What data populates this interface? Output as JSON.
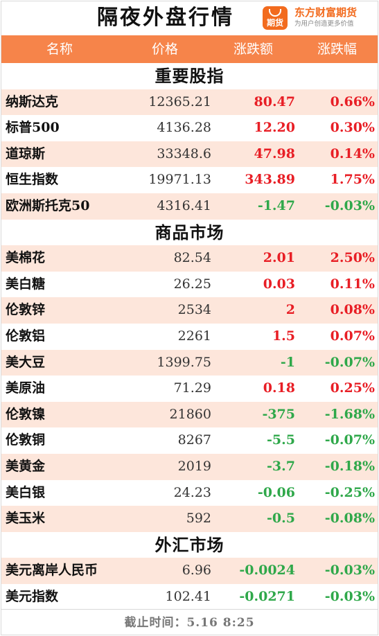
{
  "header": {
    "title": "隔夜外盘行情",
    "brand_name": "东方财富期货",
    "brand_slogan": "为用户创造更多价值",
    "brand_icon_text": "期货",
    "accent": "#f26b1e"
  },
  "columns": {
    "name": "名称",
    "price": "价格",
    "change": "涨跌额",
    "pct": "涨跌幅"
  },
  "colors": {
    "up": "#e81e25",
    "down": "#2fa84a",
    "header_bg": "#f6844a",
    "alt_row": "#fde6db"
  },
  "sections": [
    {
      "title": "重要股指",
      "rows": [
        {
          "name": "纳斯达克",
          "price": "12365.21",
          "change": "80.47",
          "pct": "0.66%",
          "dir": "up"
        },
        {
          "name": "标普500",
          "price": "4136.28",
          "change": "12.20",
          "pct": "0.30%",
          "dir": "up"
        },
        {
          "name": "道琼斯",
          "price": "33348.6",
          "change": "47.98",
          "pct": "0.14%",
          "dir": "up"
        },
        {
          "name": "恒生指数",
          "price": "19971.13",
          "change": "343.89",
          "pct": "1.75%",
          "dir": "up"
        },
        {
          "name": "欧洲斯托克50",
          "price": "4316.41",
          "change": "-1.47",
          "pct": "-0.03%",
          "dir": "down"
        }
      ]
    },
    {
      "title": "商品市场",
      "rows": [
        {
          "name": "美棉花",
          "price": "82.54",
          "change": "2.01",
          "pct": "2.50%",
          "dir": "up"
        },
        {
          "name": "美白糖",
          "price": "26.25",
          "change": "0.03",
          "pct": "0.11%",
          "dir": "up"
        },
        {
          "name": "伦敦锌",
          "price": "2534",
          "change": "2",
          "pct": "0.08%",
          "dir": "up"
        },
        {
          "name": "伦敦铝",
          "price": "2261",
          "change": "1.5",
          "pct": "0.07%",
          "dir": "up"
        },
        {
          "name": "美大豆",
          "price": "1399.75",
          "change": "-1",
          "pct": "-0.07%",
          "dir": "down"
        },
        {
          "name": "美原油",
          "price": "71.29",
          "change": "0.18",
          "pct": "0.25%",
          "dir": "up"
        },
        {
          "name": "伦敦镍",
          "price": "21860",
          "change": "-375",
          "pct": "-1.68%",
          "dir": "down"
        },
        {
          "name": "伦敦铜",
          "price": "8267",
          "change": "-5.5",
          "pct": "-0.07%",
          "dir": "down"
        },
        {
          "name": "美黄金",
          "price": "2019",
          "change": "-3.7",
          "pct": "-0.18%",
          "dir": "down"
        },
        {
          "name": "美白银",
          "price": "24.23",
          "change": "-0.06",
          "pct": "-0.25%",
          "dir": "down"
        },
        {
          "name": "美玉米",
          "price": "592",
          "change": "-0.5",
          "pct": "-0.08%",
          "dir": "down"
        }
      ]
    },
    {
      "title": "外汇市场",
      "rows": [
        {
          "name": "美元离岸人民币",
          "price": "6.96",
          "change": "-0.0024",
          "pct": "-0.03%",
          "dir": "down"
        },
        {
          "name": "美元指数",
          "price": "102.41",
          "change": "-0.0271",
          "pct": "-0.03%",
          "dir": "down"
        }
      ]
    }
  ],
  "footer": {
    "text": "截止时间：5.16  8:25"
  }
}
